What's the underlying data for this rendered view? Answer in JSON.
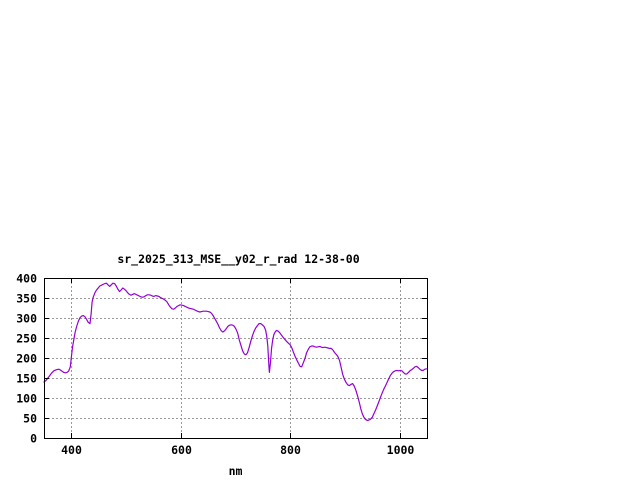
{
  "figure": {
    "background": "#ffffff"
  },
  "colors": {
    "line": "#9400D3",
    "grid": "#9a9a9a",
    "frame": "#000000",
    "text": "#000000",
    "background": "#ffffff"
  },
  "chart_data": {
    "type": "line",
    "title": "sr_2025_313_MSE__y02_r_rad 12-38-00",
    "xlabel": "nm",
    "ylabel": "",
    "xlim": [
      350,
      1050
    ],
    "ylim": [
      0,
      400
    ],
    "xticks": [
      400,
      600,
      800,
      1000
    ],
    "yticks": [
      0,
      50,
      100,
      150,
      200,
      250,
      300,
      350,
      400
    ],
    "grid": true,
    "grid_style": "dashed",
    "legend_position": "none",
    "series": [
      {
        "name": "sr_2025_313_MSE__y02_r_rad 12-38-00",
        "color": "#9400D3",
        "points": [
          [
            350,
            140
          ],
          [
            353,
            143
          ],
          [
            356,
            148
          ],
          [
            359,
            153
          ],
          [
            362,
            159
          ],
          [
            365,
            164
          ],
          [
            368,
            168
          ],
          [
            371,
            170
          ],
          [
            374,
            171
          ],
          [
            377,
            172
          ],
          [
            380,
            170
          ],
          [
            383,
            167
          ],
          [
            386,
            164
          ],
          [
            389,
            163
          ],
          [
            392,
            164
          ],
          [
            395,
            167
          ],
          [
            398,
            178
          ],
          [
            400,
            203
          ],
          [
            402,
            227
          ],
          [
            405,
            250
          ],
          [
            407,
            265
          ],
          [
            410,
            280
          ],
          [
            413,
            293
          ],
          [
            416,
            301
          ],
          [
            419,
            305
          ],
          [
            422,
            306
          ],
          [
            425,
            303
          ],
          [
            428,
            296
          ],
          [
            431,
            289
          ],
          [
            434,
            286
          ],
          [
            436,
            310
          ],
          [
            438,
            340
          ],
          [
            440,
            352
          ],
          [
            443,
            363
          ],
          [
            446,
            370
          ],
          [
            449,
            375
          ],
          [
            452,
            380
          ],
          [
            455,
            382
          ],
          [
            458,
            384
          ],
          [
            461,
            386
          ],
          [
            464,
            387
          ],
          [
            467,
            383
          ],
          [
            470,
            379
          ],
          [
            473,
            383
          ],
          [
            476,
            387
          ],
          [
            479,
            386
          ],
          [
            482,
            380
          ],
          [
            485,
            372
          ],
          [
            488,
            366
          ],
          [
            491,
            370
          ],
          [
            494,
            375
          ],
          [
            497,
            372
          ],
          [
            500,
            368
          ],
          [
            503,
            363
          ],
          [
            506,
            359
          ],
          [
            509,
            357
          ],
          [
            512,
            359
          ],
          [
            515,
            361
          ],
          [
            518,
            359
          ],
          [
            521,
            357
          ],
          [
            524,
            355
          ],
          [
            527,
            353
          ],
          [
            530,
            352
          ],
          [
            533,
            353
          ],
          [
            536,
            356
          ],
          [
            539,
            358
          ],
          [
            542,
            358
          ],
          [
            545,
            357
          ],
          [
            548,
            355
          ],
          [
            551,
            354
          ],
          [
            554,
            356
          ],
          [
            557,
            355
          ],
          [
            560,
            354
          ],
          [
            563,
            351
          ],
          [
            566,
            349
          ],
          [
            569,
            347
          ],
          [
            572,
            344
          ],
          [
            575,
            340
          ],
          [
            578,
            333
          ],
          [
            581,
            327
          ],
          [
            584,
            323
          ],
          [
            587,
            322
          ],
          [
            590,
            325
          ],
          [
            593,
            329
          ],
          [
            596,
            331
          ],
          [
            599,
            333
          ],
          [
            602,
            332
          ],
          [
            605,
            331
          ],
          [
            608,
            329
          ],
          [
            611,
            327
          ],
          [
            614,
            325
          ],
          [
            617,
            324
          ],
          [
            620,
            323
          ],
          [
            623,
            322
          ],
          [
            626,
            320
          ],
          [
            629,
            318
          ],
          [
            632,
            316
          ],
          [
            635,
            315
          ],
          [
            638,
            316
          ],
          [
            641,
            317
          ],
          [
            644,
            317
          ],
          [
            647,
            317
          ],
          [
            650,
            316
          ],
          [
            653,
            315
          ],
          [
            656,
            312
          ],
          [
            659,
            306
          ],
          [
            662,
            299
          ],
          [
            665,
            292
          ],
          [
            668,
            284
          ],
          [
            671,
            275
          ],
          [
            674,
            268
          ],
          [
            677,
            265
          ],
          [
            680,
            268
          ],
          [
            683,
            273
          ],
          [
            686,
            279
          ],
          [
            689,
            282
          ],
          [
            692,
            283
          ],
          [
            695,
            282
          ],
          [
            698,
            279
          ],
          [
            701,
            272
          ],
          [
            704,
            262
          ],
          [
            707,
            245
          ],
          [
            710,
            231
          ],
          [
            713,
            218
          ],
          [
            716,
            210
          ],
          [
            719,
            208
          ],
          [
            722,
            213
          ],
          [
            725,
            227
          ],
          [
            728,
            242
          ],
          [
            731,
            256
          ],
          [
            734,
            267
          ],
          [
            737,
            275
          ],
          [
            740,
            281
          ],
          [
            743,
            286
          ],
          [
            746,
            286
          ],
          [
            749,
            283
          ],
          [
            752,
            279
          ],
          [
            755,
            270
          ],
          [
            757,
            255
          ],
          [
            759,
            230
          ],
          [
            761,
            180
          ],
          [
            762,
            164
          ],
          [
            764,
            190
          ],
          [
            766,
            225
          ],
          [
            768,
            245
          ],
          [
            770,
            258
          ],
          [
            772,
            264
          ],
          [
            775,
            269
          ],
          [
            778,
            267
          ],
          [
            781,
            263
          ],
          [
            784,
            257
          ],
          [
            787,
            252
          ],
          [
            790,
            247
          ],
          [
            793,
            242
          ],
          [
            796,
            238
          ],
          [
            800,
            233
          ],
          [
            803,
            225
          ],
          [
            806,
            214
          ],
          [
            809,
            204
          ],
          [
            812,
            195
          ],
          [
            815,
            187
          ],
          [
            818,
            179
          ],
          [
            821,
            178
          ],
          [
            824,
            188
          ],
          [
            827,
            199
          ],
          [
            830,
            213
          ],
          [
            833,
            222
          ],
          [
            836,
            228
          ],
          [
            839,
            230
          ],
          [
            842,
            230
          ],
          [
            845,
            228
          ],
          [
            848,
            227
          ],
          [
            851,
            228
          ],
          [
            854,
            229
          ],
          [
            857,
            227
          ],
          [
            860,
            226
          ],
          [
            863,
            227
          ],
          [
            866,
            226
          ],
          [
            869,
            225
          ],
          [
            872,
            224
          ],
          [
            875,
            224
          ],
          [
            878,
            220
          ],
          [
            881,
            214
          ],
          [
            884,
            209
          ],
          [
            887,
            204
          ],
          [
            890,
            194
          ],
          [
            893,
            177
          ],
          [
            896,
            159
          ],
          [
            899,
            147
          ],
          [
            902,
            139
          ],
          [
            905,
            133
          ],
          [
            908,
            131
          ],
          [
            911,
            134
          ],
          [
            914,
            136
          ],
          [
            917,
            130
          ],
          [
            920,
            119
          ],
          [
            923,
            106
          ],
          [
            926,
            90
          ],
          [
            929,
            73
          ],
          [
            932,
            60
          ],
          [
            935,
            51
          ],
          [
            938,
            46
          ],
          [
            941,
            44
          ],
          [
            944,
            45
          ],
          [
            947,
            47
          ],
          [
            950,
            52
          ],
          [
            953,
            61
          ],
          [
            956,
            70
          ],
          [
            959,
            80
          ],
          [
            962,
            91
          ],
          [
            965,
            102
          ],
          [
            968,
            112
          ],
          [
            971,
            122
          ],
          [
            974,
            130
          ],
          [
            977,
            139
          ],
          [
            980,
            148
          ],
          [
            983,
            156
          ],
          [
            986,
            162
          ],
          [
            989,
            166
          ],
          [
            992,
            168
          ],
          [
            995,
            169
          ],
          [
            998,
            168
          ],
          [
            1001,
            169
          ],
          [
            1004,
            168
          ],
          [
            1007,
            164
          ],
          [
            1010,
            160
          ],
          [
            1013,
            160
          ],
          [
            1016,
            164
          ],
          [
            1019,
            168
          ],
          [
            1022,
            171
          ],
          [
            1025,
            174
          ],
          [
            1028,
            178
          ],
          [
            1031,
            179
          ],
          [
            1034,
            176
          ],
          [
            1037,
            172
          ],
          [
            1040,
            169
          ],
          [
            1043,
            169
          ],
          [
            1046,
            172
          ],
          [
            1049,
            173
          ]
        ]
      }
    ]
  }
}
